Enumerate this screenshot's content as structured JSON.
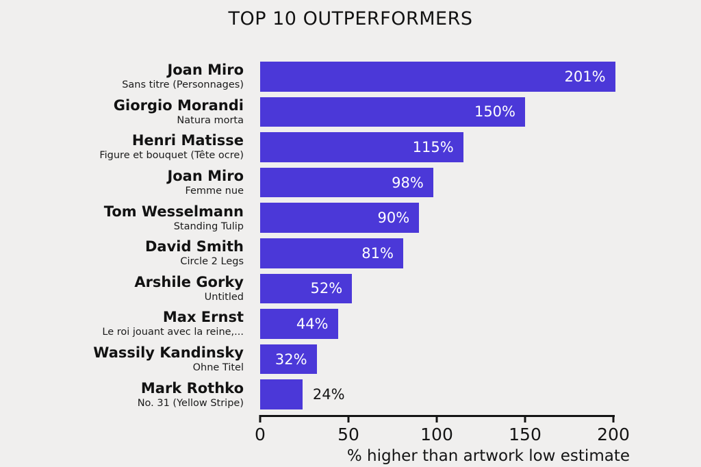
{
  "title": "TOP 10 OUTPERFORMERS",
  "colors": {
    "background": "#f0efee",
    "bar": "#4b38d8",
    "value_label_inside": "#ffffff",
    "value_label_outside": "#141414",
    "text": "#141414"
  },
  "chart_data": {
    "type": "bar",
    "orientation": "horizontal",
    "title": "TOP 10 OUTPERFORMERS",
    "xlabel": "% higher than artwork low estimate",
    "xlim": [
      0,
      200
    ],
    "xticks": [
      0,
      50,
      100,
      150,
      200
    ],
    "grid": false,
    "legend": false,
    "bars": [
      {
        "artist": "Joan Miro",
        "artwork": "Sans titre (Personnages)",
        "value": 201,
        "label": "201%"
      },
      {
        "artist": "Giorgio Morandi",
        "artwork": "Natura morta",
        "value": 150,
        "label": "150%"
      },
      {
        "artist": "Henri Matisse",
        "artwork": "Figure et bouquet (Tête ocre)",
        "value": 115,
        "label": "115%"
      },
      {
        "artist": "Joan Miro",
        "artwork": "Femme nue",
        "value": 98,
        "label": "98%"
      },
      {
        "artist": "Tom Wesselmann",
        "artwork": "Standing Tulip",
        "value": 90,
        "label": "90%"
      },
      {
        "artist": "David Smith",
        "artwork": "Circle 2 Legs",
        "value": 81,
        "label": "81%"
      },
      {
        "artist": "Arshile Gorky",
        "artwork": "Untitled",
        "value": 52,
        "label": "52%"
      },
      {
        "artist": "Max Ernst",
        "artwork": "Le roi jouant avec la reine,...",
        "value": 44,
        "label": "44%"
      },
      {
        "artist": "Wassily Kandinsky",
        "artwork": "Ohne Titel",
        "value": 32,
        "label": "32%"
      },
      {
        "artist": "Mark Rothko",
        "artwork": "No. 31 (Yellow Stripe)",
        "value": 24,
        "label": "24%"
      }
    ]
  }
}
